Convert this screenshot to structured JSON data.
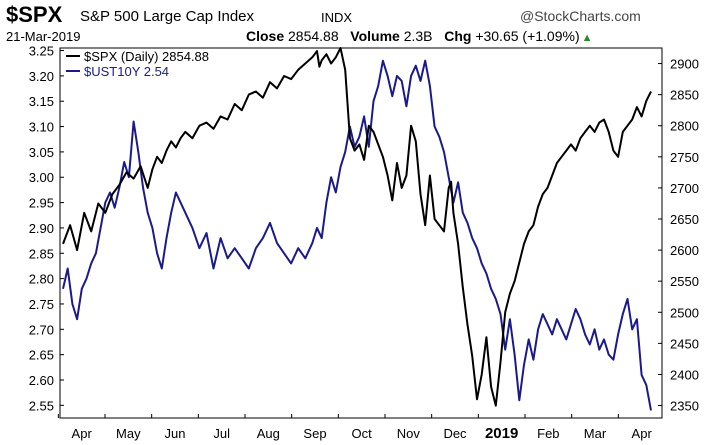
{
  "header": {
    "symbol": "$SPX",
    "name": "S&P 500 Large Cap Index",
    "exchange": "INDX",
    "brand": "@StockCharts.com",
    "date": "21-Mar-2019",
    "close_label": "Close",
    "close_value": "2854.88",
    "volume_label": "Volume",
    "volume_value": "2.3B",
    "chg_label": "Chg",
    "chg_value": "+30.65 (+1.09%)",
    "chg_arrow": "▲"
  },
  "chart_data": {
    "type": "line",
    "x_labels": [
      "Apr",
      "May",
      "Jun",
      "Jul",
      "Aug",
      "Sep",
      "Oct",
      "Nov",
      "Dec",
      "2019",
      "Feb",
      "Mar",
      "Apr"
    ],
    "left_axis": {
      "ticks": [
        "3.25",
        "3.20",
        "3.15",
        "3.10",
        "3.05",
        "3.00",
        "2.95",
        "2.90",
        "2.85",
        "2.80",
        "2.75",
        "2.70",
        "2.65",
        "2.60",
        "2.55"
      ],
      "ylim": [
        2.525,
        3.255
      ]
    },
    "right_axis": {
      "ticks": [
        "2900",
        "2850",
        "2800",
        "2750",
        "2700",
        "2650",
        "2600",
        "2550",
        "2500",
        "2450",
        "2400",
        "2350"
      ],
      "ylim": [
        2330,
        2925
      ]
    },
    "grid": false,
    "legend_position": "top-left",
    "colors": {
      "spx": "#000000",
      "ust": "#1a1a8c"
    },
    "series": [
      {
        "name": "$SPX (Daily) 2854.88",
        "axis": "right",
        "x": [
          0,
          3,
          6,
          9,
          12,
          15,
          18,
          21,
          24,
          27,
          30,
          33,
          36,
          38,
          40,
          42,
          44,
          46,
          48,
          50,
          52,
          55,
          58,
          61,
          64,
          67,
          70,
          73,
          76,
          79,
          82,
          85,
          88,
          91,
          94,
          97,
          100,
          103,
          106,
          108,
          109,
          110,
          112,
          114,
          116,
          118,
          120,
          122,
          124,
          126,
          128,
          130,
          132,
          134,
          136,
          138,
          140,
          142,
          144,
          146,
          148,
          150,
          152,
          154,
          156,
          158,
          160,
          162,
          164,
          165,
          166,
          168,
          170,
          172,
          174,
          176,
          178,
          180,
          182,
          184,
          186,
          188,
          190,
          192,
          194,
          196,
          198,
          200,
          202,
          204,
          206,
          208,
          210,
          212,
          214,
          216,
          218,
          220,
          222,
          224,
          226,
          228,
          230,
          232,
          234,
          236,
          238,
          240,
          242,
          244,
          246,
          248,
          250
        ],
        "y": [
          2610,
          2640,
          2600,
          2660,
          2630,
          2675,
          2660,
          2690,
          2705,
          2725,
          2715,
          2735,
          2700,
          2730,
          2750,
          2740,
          2760,
          2775,
          2765,
          2780,
          2790,
          2780,
          2800,
          2805,
          2795,
          2815,
          2810,
          2835,
          2825,
          2850,
          2855,
          2845,
          2870,
          2860,
          2880,
          2875,
          2890,
          2900,
          2910,
          2920,
          2895,
          2905,
          2915,
          2900,
          2910,
          2925,
          2890,
          2780,
          2760,
          2770,
          2745,
          2800,
          2790,
          2770,
          2750,
          2720,
          2680,
          2740,
          2700,
          2720,
          2800,
          2775,
          2690,
          2640,
          2720,
          2650,
          2640,
          2630,
          2700,
          2710,
          2660,
          2610,
          2540,
          2480,
          2430,
          2360,
          2400,
          2460,
          2380,
          2350,
          2420,
          2500,
          2530,
          2550,
          2580,
          2610,
          2630,
          2640,
          2670,
          2690,
          2700,
          2720,
          2740,
          2750,
          2760,
          2770,
          2760,
          2780,
          2790,
          2800,
          2790,
          2805,
          2810,
          2790,
          2760,
          2750,
          2790,
          2800,
          2810,
          2830,
          2815,
          2840,
          2855
        ]
      },
      {
        "name": "$UST10Y 2.54",
        "axis": "left",
        "x": [
          0,
          2,
          4,
          6,
          8,
          10,
          12,
          14,
          16,
          18,
          20,
          22,
          24,
          26,
          28,
          30,
          32,
          34,
          36,
          38,
          40,
          42,
          44,
          46,
          48,
          50,
          52,
          55,
          58,
          61,
          64,
          67,
          70,
          73,
          76,
          79,
          82,
          85,
          88,
          91,
          94,
          97,
          100,
          103,
          106,
          108,
          110,
          112,
          114,
          116,
          118,
          120,
          122,
          124,
          126,
          128,
          130,
          132,
          134,
          136,
          138,
          140,
          142,
          144,
          146,
          148,
          150,
          152,
          154,
          156,
          158,
          160,
          162,
          164,
          166,
          168,
          170,
          172,
          174,
          176,
          178,
          180,
          182,
          184,
          186,
          188,
          190,
          192,
          194,
          196,
          198,
          200,
          202,
          204,
          206,
          208,
          210,
          212,
          214,
          216,
          218,
          220,
          222,
          224,
          226,
          228,
          230,
          232,
          234,
          236,
          238,
          240,
          242,
          244,
          246,
          248,
          250
        ],
        "y": [
          2.78,
          2.82,
          2.75,
          2.72,
          2.78,
          2.8,
          2.83,
          2.85,
          2.9,
          2.95,
          2.97,
          2.94,
          2.98,
          3.03,
          3.0,
          3.11,
          3.05,
          2.98,
          2.93,
          2.9,
          2.85,
          2.82,
          2.88,
          2.93,
          2.97,
          2.95,
          2.93,
          2.9,
          2.86,
          2.89,
          2.82,
          2.88,
          2.84,
          2.86,
          2.84,
          2.82,
          2.86,
          2.88,
          2.91,
          2.87,
          2.85,
          2.83,
          2.86,
          2.84,
          2.87,
          2.9,
          2.88,
          2.95,
          3.0,
          2.97,
          3.02,
          3.05,
          3.1,
          3.06,
          3.08,
          3.12,
          3.06,
          3.15,
          3.18,
          3.23,
          3.2,
          3.16,
          3.2,
          3.19,
          3.14,
          3.2,
          3.22,
          3.19,
          3.23,
          3.18,
          3.1,
          3.08,
          3.05,
          3.0,
          2.95,
          2.99,
          2.93,
          2.91,
          2.88,
          2.86,
          2.83,
          2.81,
          2.78,
          2.76,
          2.73,
          2.66,
          2.72,
          2.65,
          2.56,
          2.63,
          2.68,
          2.64,
          2.7,
          2.73,
          2.71,
          2.69,
          2.72,
          2.7,
          2.68,
          2.71,
          2.74,
          2.72,
          2.69,
          2.67,
          2.7,
          2.66,
          2.68,
          2.65,
          2.64,
          2.69,
          2.73,
          2.76,
          2.7,
          2.72,
          2.61,
          2.59,
          2.54
        ]
      }
    ]
  }
}
